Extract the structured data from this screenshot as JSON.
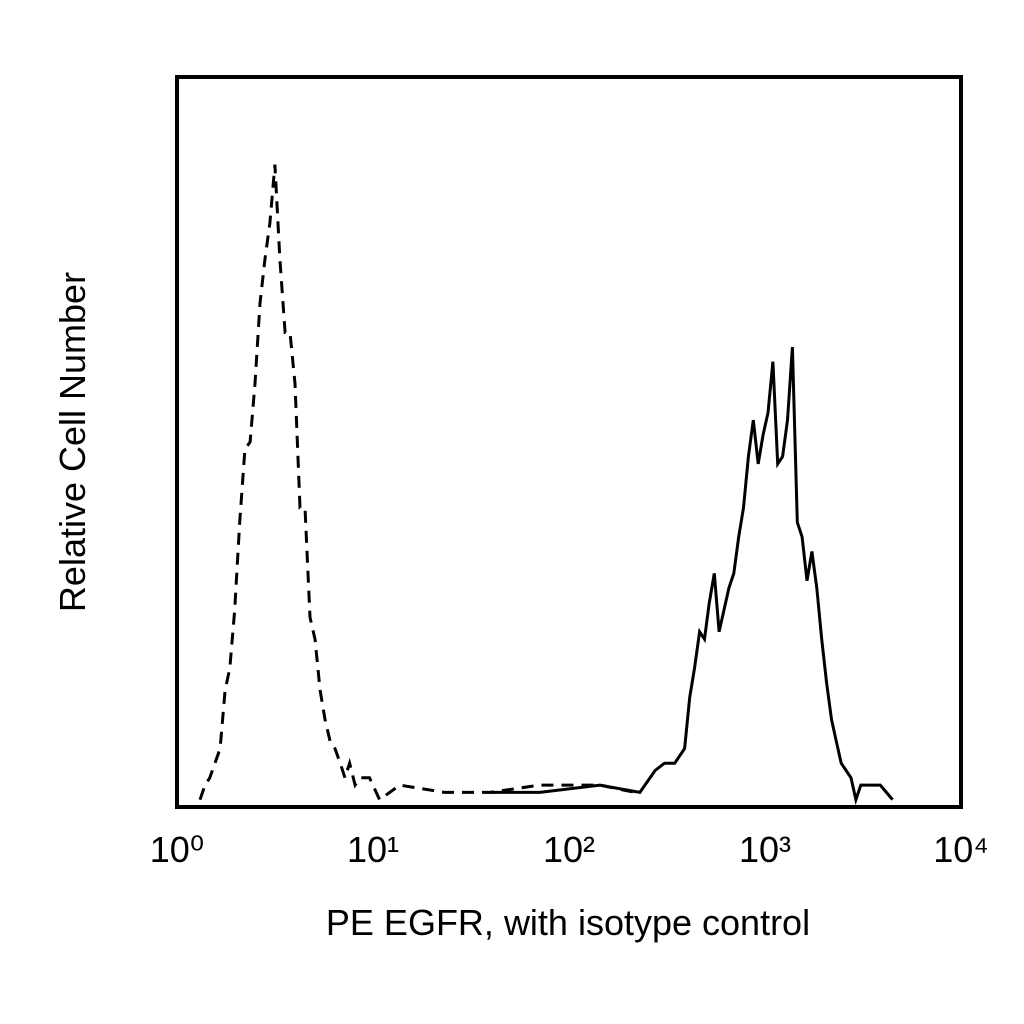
{
  "chart_data": {
    "type": "line",
    "x_label": "PE EGFR, with isotype control",
    "y_label": "Relative Cell Number",
    "xscale": "log",
    "xlim": [
      1,
      10000
    ],
    "xticks": [
      {
        "value": 1,
        "label": "10⁰"
      },
      {
        "value": 10,
        "label": "10¹"
      },
      {
        "value": 100,
        "label": "10²"
      },
      {
        "value": 1000,
        "label": "10³"
      },
      {
        "value": 10000,
        "label": "10⁴"
      }
    ],
    "ylim": [
      0,
      100
    ],
    "series": [
      {
        "color": "#000000",
        "dash": true,
        "x": [
          1.31,
          1.39,
          1.47,
          1.66,
          1.76,
          1.86,
          1.97,
          2.09,
          2.22,
          2.36,
          2.5,
          2.65,
          2.81,
          2.98,
          3.16,
          3.35,
          3.56,
          3.77,
          4.0,
          4.24,
          4.5,
          4.77,
          5.06,
          5.37,
          5.69,
          6.04,
          6.4,
          6.8,
          7.2,
          7.6,
          8.1,
          8.6,
          9.6,
          10.8,
          13.7,
          23.2,
          39.6,
          71,
          101,
          144,
          217
        ],
        "values": [
          1,
          3,
          4,
          8,
          16,
          19,
          27,
          39,
          49,
          50,
          58,
          69,
          75,
          80,
          88,
          75,
          65,
          65,
          58,
          41,
          41,
          26,
          23,
          16,
          12,
          9,
          8,
          6,
          4,
          6,
          3,
          4,
          4,
          1,
          3,
          2,
          2,
          3,
          3,
          3,
          2
        ]
      },
      {
        "color": "#000000",
        "dash": false,
        "x": [
          39.6,
          71,
          144,
          230,
          275,
          307,
          346,
          389,
          413,
          437,
          464,
          491,
          520,
          551,
          583,
          618,
          654,
          693,
          734,
          777,
          823,
          872,
          923,
          978,
          1036,
          1097,
          1161,
          1230,
          1303,
          1379,
          1461,
          1547,
          1638,
          1735,
          1838,
          1946,
          2061,
          2183,
          2312,
          2448,
          2593,
          2746,
          2908,
          3080,
          3454,
          3873,
          4475
        ],
        "values": [
          2,
          2,
          3,
          2,
          5,
          6,
          6,
          8,
          15,
          19,
          24,
          23,
          28,
          32,
          24,
          27,
          30,
          32,
          37,
          41,
          48,
          53,
          47,
          51,
          54,
          61,
          47,
          48,
          53,
          63,
          39,
          37,
          31,
          35,
          30,
          23,
          17,
          12,
          9,
          6,
          5,
          4,
          1,
          3,
          3,
          3,
          1
        ]
      }
    ]
  }
}
